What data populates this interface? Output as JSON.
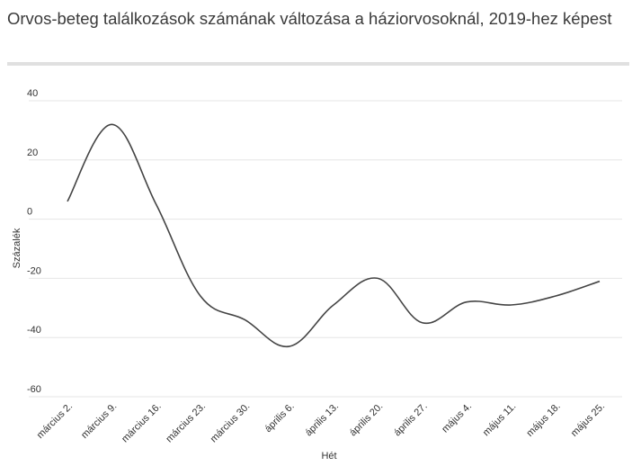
{
  "title": "Orvos-beteg találkozások számának változása a háziorvosoknál, 2019-hez képest",
  "chart_data": {
    "type": "line",
    "title": "Orvos-beteg találkozások számának változása a háziorvosoknál, 2019-hez képest",
    "xlabel": "Hét",
    "ylabel": "Százalék",
    "ylim": [
      -60,
      40
    ],
    "yticks": [
      40,
      20,
      0,
      -20,
      -40,
      -60
    ],
    "grid": true,
    "smooth": true,
    "colors": {
      "line": "#444444",
      "grid": "#e6e6e6"
    },
    "x": [
      "március 2.",
      "március 9.",
      "március 16.",
      "március 23.",
      "március 30.",
      "április 6.",
      "április 13.",
      "április 20.",
      "április 27.",
      "május 4.",
      "május 11.",
      "május 18.",
      "május 25."
    ],
    "series": [
      {
        "values": [
          6,
          32,
          5,
          -26,
          -34,
          -43,
          -29,
          -20,
          -35,
          -28,
          -29,
          -26,
          -21
        ]
      }
    ]
  }
}
